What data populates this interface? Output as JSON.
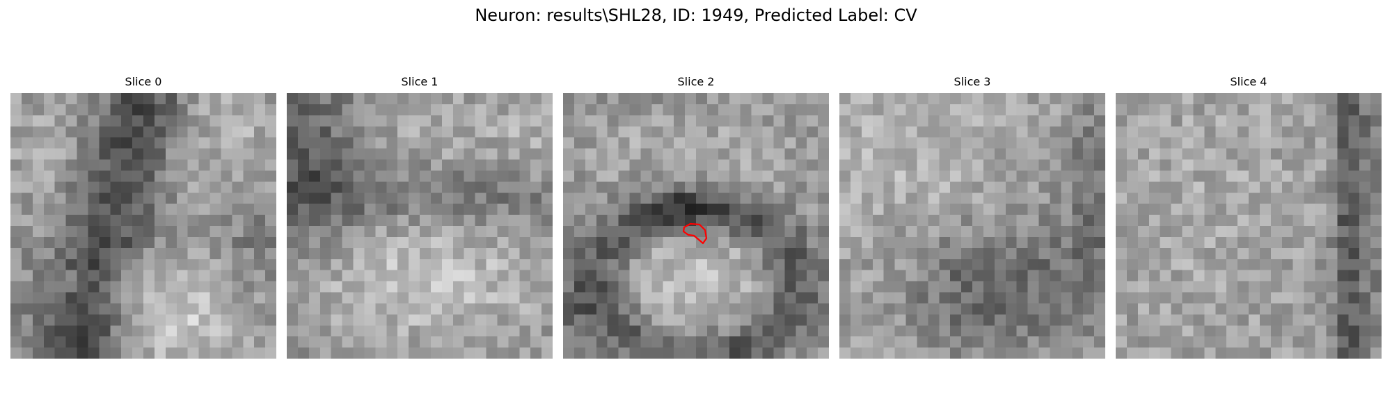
{
  "figure": {
    "title": "Neuron: results\\SHL28, ID: 1949, Predicted Label: CV",
    "panels": [
      {
        "label": "Slice 0",
        "pattern": "dark upper diagonal band from top-center to lower-left, bright blob at bottom-center",
        "has_contour": false
      },
      {
        "label": "Slice 1",
        "pattern": "dark upper-left corner and dark horizontal band across middle, bright large ellipse in lower half",
        "has_contour": false
      },
      {
        "label": "Slice 2",
        "pattern": "bright top region, dark ring around a bright central ellipse in lower half, small red outline at top of ellipse",
        "has_contour": true
      },
      {
        "label": "Slice 3",
        "pattern": "bright upper-left, dark blob lower-center, dark right edge",
        "has_contour": false
      },
      {
        "label": "Slice 4",
        "pattern": "mostly uniform mid-grey noise with dark vertical strip near right edge",
        "has_contour": false
      }
    ],
    "contour_color": "#ff0000",
    "grid_size": 24
  }
}
